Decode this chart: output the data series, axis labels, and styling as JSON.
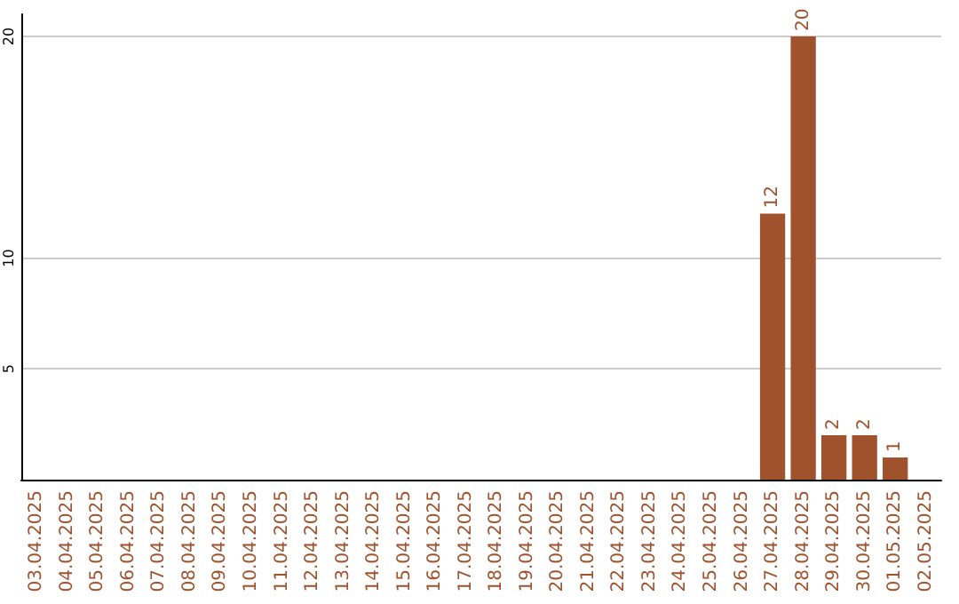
{
  "chart_data": {
    "type": "bar",
    "categories": [
      "03.04.2025",
      "04.04.2025",
      "05.04.2025",
      "06.04.2025",
      "07.04.2025",
      "08.04.2025",
      "09.04.2025",
      "10.04.2025",
      "11.04.2025",
      "12.04.2025",
      "13.04.2025",
      "14.04.2025",
      "15.04.2025",
      "16.04.2025",
      "17.04.2025",
      "18.04.2025",
      "19.04.2025",
      "20.04.2025",
      "21.04.2025",
      "22.04.2025",
      "23.04.2025",
      "24.04.2025",
      "25.04.2025",
      "26.04.2025",
      "27.04.2025",
      "28.04.2025",
      "29.04.2025",
      "30.04.2025",
      "01.05.2025",
      "02.05.2025"
    ],
    "values": [
      0,
      0,
      0,
      0,
      0,
      0,
      0,
      0,
      0,
      0,
      0,
      0,
      0,
      0,
      0,
      0,
      0,
      0,
      0,
      0,
      0,
      0,
      0,
      0,
      12,
      20,
      2,
      2,
      1,
      0
    ],
    "value_labels": [
      null,
      null,
      null,
      null,
      null,
      null,
      null,
      null,
      null,
      null,
      null,
      null,
      null,
      null,
      null,
      null,
      null,
      null,
      null,
      null,
      null,
      null,
      null,
      null,
      "12",
      "20",
      "2",
      "2",
      "1",
      null
    ],
    "color": "#a0522d",
    "ylim": [
      0,
      21
    ],
    "yticks": [
      5,
      10,
      20
    ],
    "grid": "y"
  }
}
